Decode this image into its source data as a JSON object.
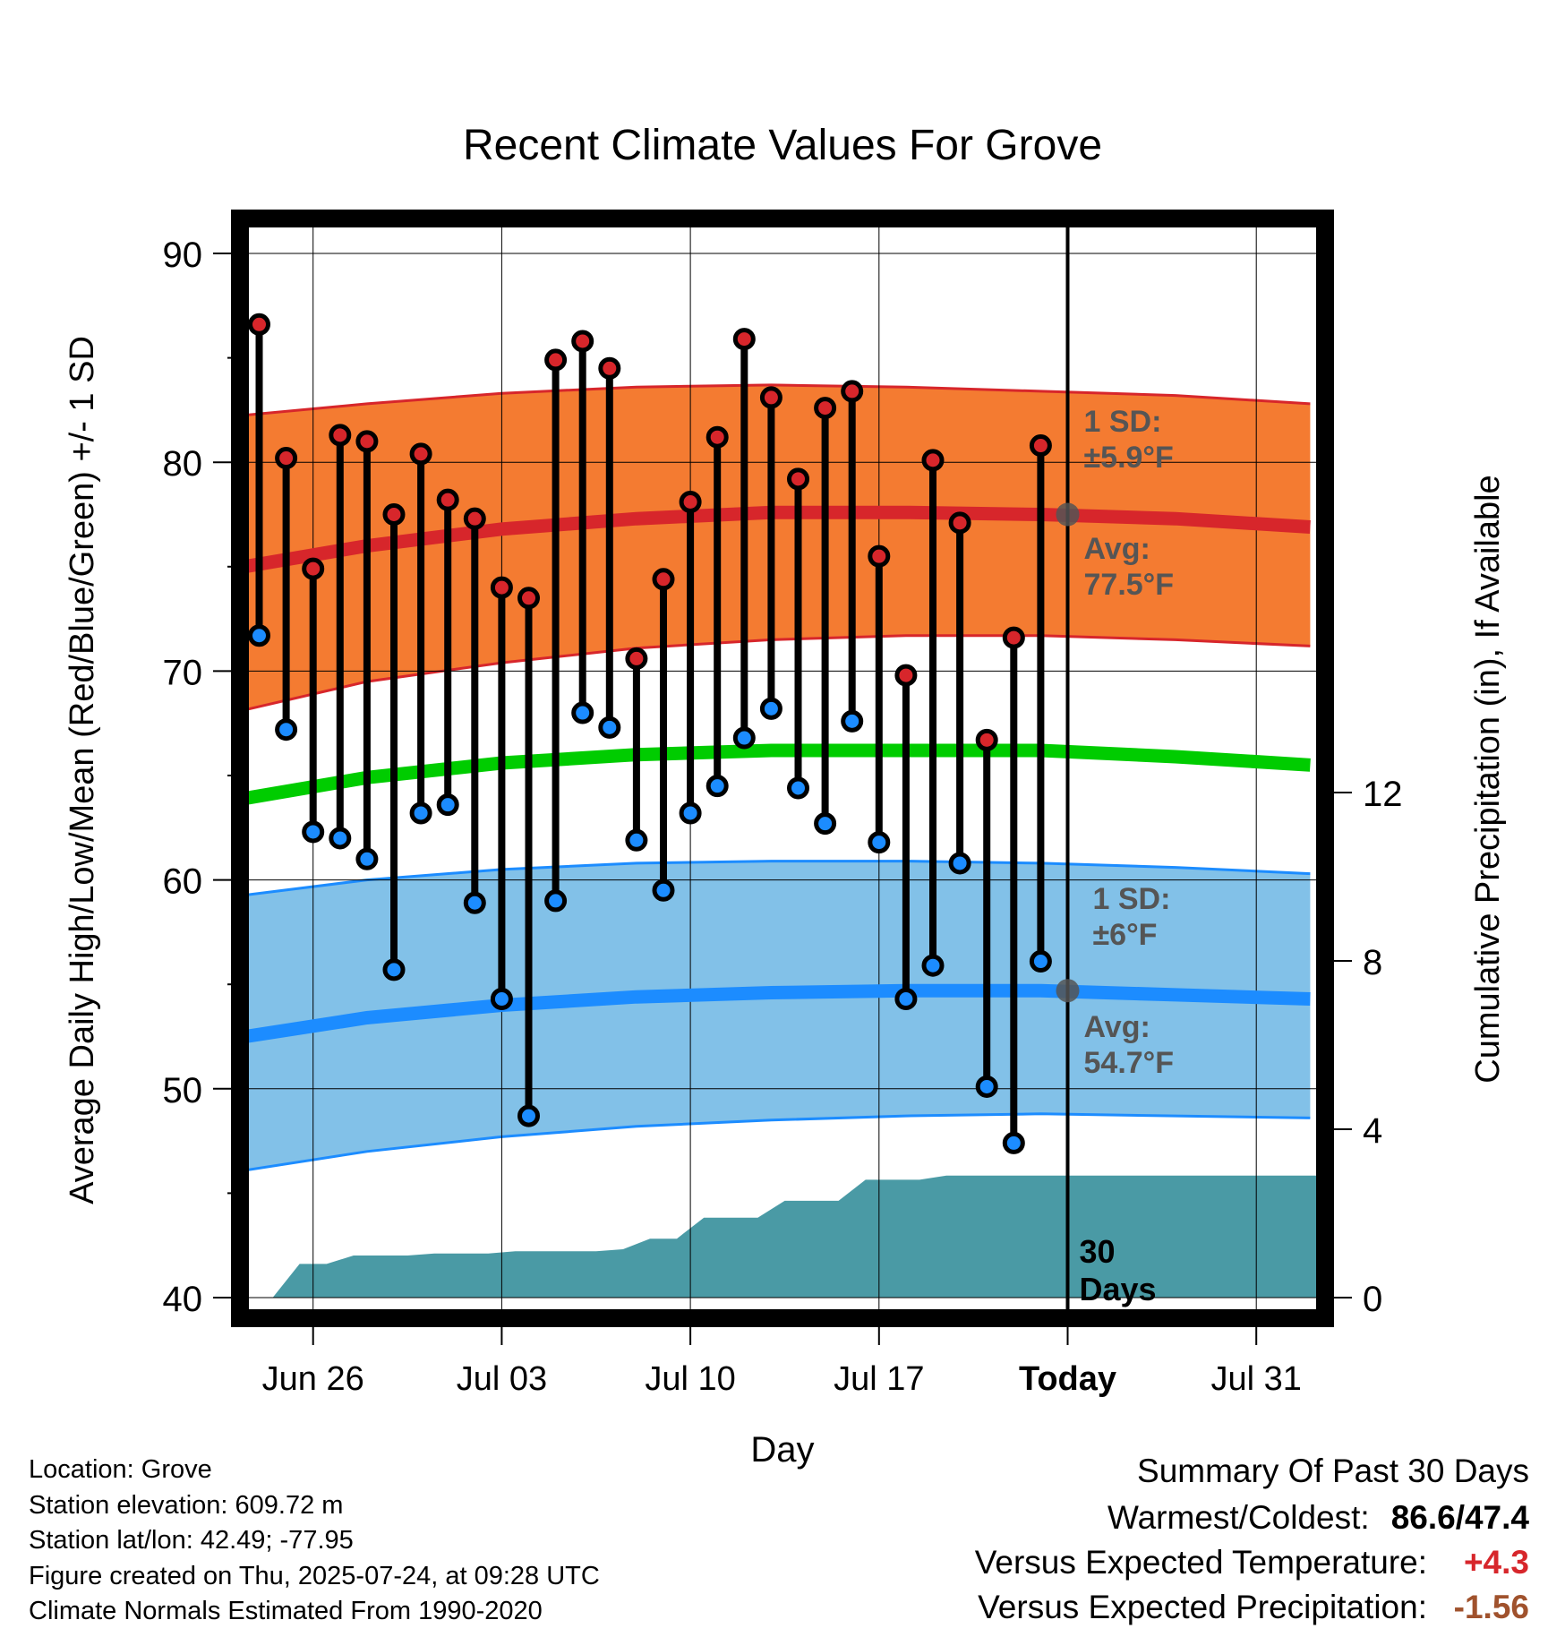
{
  "chart_data": {
    "type": "line",
    "title": "Recent Climate Values For Grove",
    "xlabel": "Day",
    "ylabel": "Average Daily High/Low/Mean (Red/Blue/Green) +/- 1 SD",
    "y2label": "Cumulative Precipitation (in), If Available",
    "ylim": [
      40,
      90
    ],
    "y_ticks": [
      "40",
      "50",
      "60",
      "70",
      "80",
      "90"
    ],
    "y2lim": [
      0,
      12
    ],
    "y2_ticks": [
      "0",
      "4",
      "8",
      "12"
    ],
    "x_ticks": [
      "Jun 26",
      "Jul 03",
      "Jul 10",
      "Jul 17",
      "Today",
      "Jul 31"
    ],
    "grid": true,
    "x_start": "Jun 23",
    "x_end": "Aug 02",
    "today_index": 30,
    "days": [
      "Jun 24",
      "Jun 25",
      "Jun 26",
      "Jun 27",
      "Jun 28",
      "Jun 29",
      "Jun 30",
      "Jul 01",
      "Jul 02",
      "Jul 03",
      "Jul 04",
      "Jul 05",
      "Jul 06",
      "Jul 07",
      "Jul 08",
      "Jul 09",
      "Jul 10",
      "Jul 11",
      "Jul 12",
      "Jul 13",
      "Jul 14",
      "Jul 15",
      "Jul 16",
      "Jul 17",
      "Jul 18",
      "Jul 19",
      "Jul 20",
      "Jul 21",
      "Jul 22",
      "Jul 23"
    ],
    "highs": [
      86.6,
      80.2,
      74.9,
      81.3,
      81.0,
      77.5,
      80.4,
      78.2,
      77.3,
      74.0,
      73.5,
      84.9,
      85.8,
      84.5,
      70.6,
      74.4,
      78.1,
      81.2,
      85.9,
      83.1,
      79.2,
      82.6,
      83.4,
      75.5,
      69.8,
      80.1,
      77.1,
      66.7,
      71.6,
      80.8
    ],
    "lows": [
      71.7,
      67.2,
      62.3,
      62.0,
      61.0,
      55.7,
      63.2,
      63.6,
      58.9,
      54.3,
      48.7,
      59.0,
      68.0,
      67.3,
      61.9,
      59.5,
      63.2,
      64.5,
      66.8,
      68.2,
      64.4,
      62.7,
      67.6,
      61.8,
      54.3,
      55.9,
      60.8,
      50.1,
      47.4,
      56.1
    ],
    "normals": {
      "dates": [
        "Jun 23",
        "Jun 28",
        "Jul 03",
        "Jul 08",
        "Jul 13",
        "Jul 18",
        "Jul 23",
        "Jul 28",
        "Aug 02"
      ],
      "high_avg": [
        74.9,
        76.0,
        76.8,
        77.3,
        77.6,
        77.6,
        77.5,
        77.3,
        76.9
      ],
      "high_upper": [
        82.2,
        82.8,
        83.3,
        83.6,
        83.7,
        83.6,
        83.4,
        83.2,
        82.8
      ],
      "high_lower": [
        68.0,
        69.5,
        70.4,
        71.1,
        71.5,
        71.7,
        71.7,
        71.5,
        71.2
      ],
      "mean_avg": [
        63.8,
        64.9,
        65.6,
        66.0,
        66.2,
        66.2,
        66.2,
        65.9,
        65.5
      ],
      "low_avg": [
        52.4,
        53.4,
        54.0,
        54.4,
        54.6,
        54.7,
        54.7,
        54.5,
        54.3
      ],
      "low_upper": [
        59.2,
        60.0,
        60.5,
        60.8,
        60.9,
        60.9,
        60.8,
        60.6,
        60.3
      ],
      "low_lower": [
        46.0,
        47.0,
        47.7,
        48.2,
        48.5,
        48.7,
        48.8,
        48.7,
        48.6
      ]
    },
    "precip_cumulative": [
      0,
      0,
      0.8,
      0.8,
      1.0,
      1.0,
      1.0,
      1.05,
      1.05,
      1.05,
      1.1,
      1.1,
      1.1,
      1.1,
      1.15,
      1.4,
      1.4,
      1.9,
      1.9,
      1.9,
      2.3,
      2.3,
      2.3,
      2.8,
      2.8,
      2.8,
      2.9,
      2.9,
      2.9,
      2.9,
      2.9
    ],
    "annotations": {
      "high_sd": "1 SD:",
      "high_sd_value": "±5.9°F",
      "high_avg_label": "Avg:",
      "high_avg_value": "77.5°F",
      "low_sd": "1 SD:",
      "low_sd_value": "±6°F",
      "low_avg_label": "Avg:",
      "low_avg_value": "54.7°F",
      "precip_label_1": "30",
      "precip_label_2": "Days"
    },
    "colors": {
      "high_band": "#f47b31",
      "high_line": "#d7262b",
      "low_band": "#82c1e8",
      "low_line": "#1c8cff",
      "mean_line": "#00cc00",
      "precip": "#4a9aa5",
      "high_dot": "#d7262b",
      "low_dot": "#1c8cff",
      "annotation": "#555555"
    }
  },
  "info": {
    "location": "Location: Grove",
    "elevation": "Station elevation: 609.72 m",
    "latlon": "Station lat/lon: 42.49; -77.95",
    "created": "Figure created on Thu, 2025-07-24, at 09:28 UTC",
    "normals": "Climate Normals Estimated From 1990-2020"
  },
  "summary": {
    "heading": "Summary Of Past 30 Days",
    "warm_label": "Warmest/Coldest:",
    "warm_value": "86.6/47.4",
    "temp_label": "Versus Expected Temperature:",
    "temp_value": "+4.3",
    "temp_color": "#d7262b",
    "precip_label": "Versus Expected Precipitation:",
    "precip_value": "-1.56",
    "precip_color": "#a0522d"
  }
}
